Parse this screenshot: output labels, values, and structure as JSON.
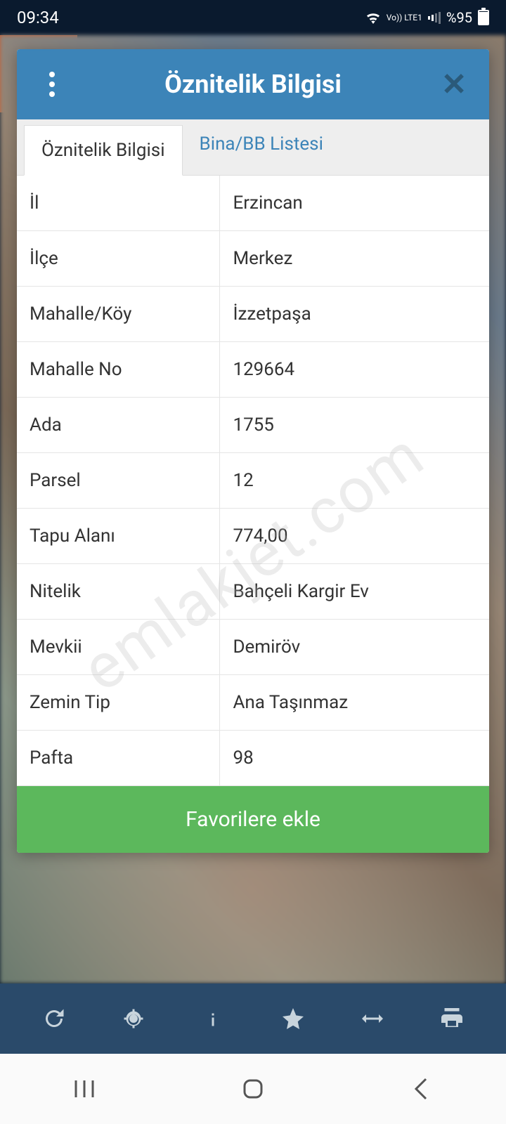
{
  "status": {
    "time": "09:34",
    "network_label": "Vo)) LTE1",
    "battery_pct": "%95"
  },
  "dialog": {
    "title": "Öznitelik Bilgisi",
    "tabs": [
      {
        "label": "Öznitelik Bilgisi",
        "active": true
      },
      {
        "label": "Bina/BB Listesi",
        "active": false
      }
    ],
    "rows": [
      {
        "label": "İl",
        "value": "Erzincan"
      },
      {
        "label": "İlçe",
        "value": "Merkez"
      },
      {
        "label": "Mahalle/Köy",
        "value": "İzzetpaşa"
      },
      {
        "label": "Mahalle No",
        "value": "129664"
      },
      {
        "label": "Ada",
        "value": "1755"
      },
      {
        "label": "Parsel",
        "value": "12"
      },
      {
        "label": "Tapu Alanı",
        "value": "774,00"
      },
      {
        "label": "Nitelik",
        "value": "Bahçeli Kargir Ev"
      },
      {
        "label": "Mevkii",
        "value": "Demiröv"
      },
      {
        "label": "Zemin Tip",
        "value": "Ana Taşınmaz"
      },
      {
        "label": "Pafta",
        "value": "98"
      }
    ],
    "favorites_label": "Favorilere ekle"
  },
  "watermark": "emlakjet.com",
  "colors": {
    "status_bg": "#0a1a2e",
    "orange": "#c85a2e",
    "header_blue": "#3c84b8",
    "tab_inactive_bg": "#eeeeee",
    "link_blue": "#3c84b8",
    "text": "#333333",
    "border": "#e5e5e5",
    "green": "#5cb85c",
    "toolbar_bg": "#2a4a6a",
    "toolbar_icon": "#c8d4dc",
    "nav_bg": "#fafafa"
  }
}
